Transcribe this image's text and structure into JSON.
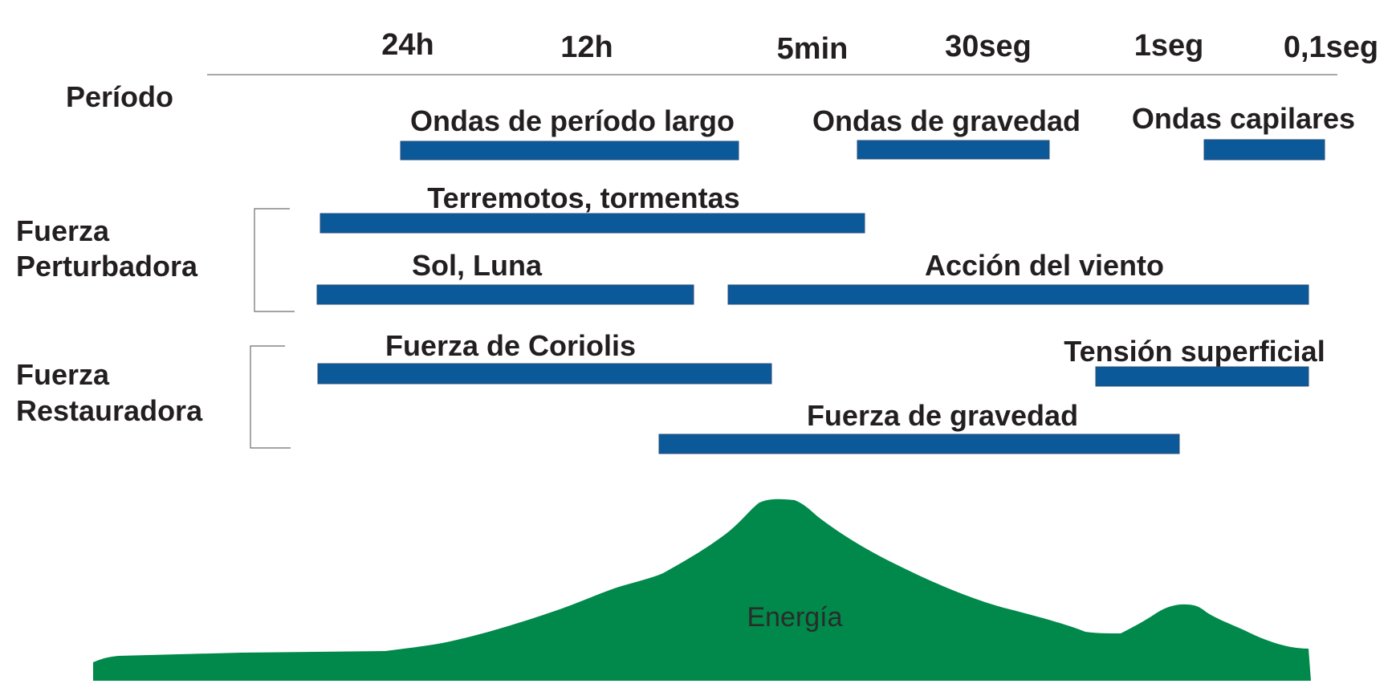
{
  "periods": [
    "24h",
    "12h",
    "5min",
    "30seg",
    "1seg",
    "0,1seg"
  ],
  "labels": {
    "period": "Período",
    "disturbing": [
      "Fuerza",
      "Perturbadora"
    ],
    "restoring": [
      "Fuerza",
      "Restauradora"
    ],
    "energy": "Energía"
  },
  "bars": [
    {
      "id": "ondas-periodo-largo",
      "label": "Ondas de período largo"
    },
    {
      "id": "ondas-gravedad",
      "label": "Ondas de gravedad"
    },
    {
      "id": "ondas-capilares",
      "label": "Ondas capilares"
    },
    {
      "id": "terremotos-tormentas",
      "label": "Terremotos, tormentas"
    },
    {
      "id": "sol-luna",
      "label": "Sol, Luna"
    },
    {
      "id": "accion-viento",
      "label": "Acción del viento"
    },
    {
      "id": "fuerza-coriolis",
      "label": "Fuerza de Coriolis"
    },
    {
      "id": "tension-superficial",
      "label": "Tensión superficial"
    },
    {
      "id": "fuerza-gravedad",
      "label": "Fuerza de gravedad"
    }
  ],
  "colors": {
    "bar": "#0b5999",
    "energy": "#00894a",
    "text": "#231f20",
    "axis": "#8c8c8c"
  }
}
